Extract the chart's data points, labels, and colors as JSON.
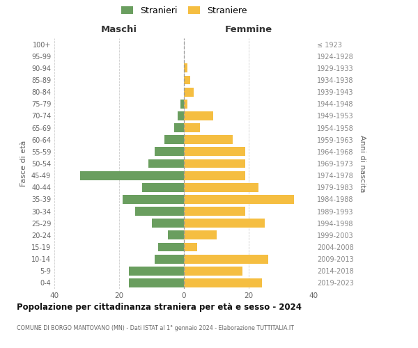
{
  "age_groups": [
    "0-4",
    "5-9",
    "10-14",
    "15-19",
    "20-24",
    "25-29",
    "30-34",
    "35-39",
    "40-44",
    "45-49",
    "50-54",
    "55-59",
    "60-64",
    "65-69",
    "70-74",
    "75-79",
    "80-84",
    "85-89",
    "90-94",
    "95-99",
    "100+"
  ],
  "birth_years": [
    "2019-2023",
    "2014-2018",
    "2009-2013",
    "2004-2008",
    "1999-2003",
    "1994-1998",
    "1989-1993",
    "1984-1988",
    "1979-1983",
    "1974-1978",
    "1969-1973",
    "1964-1968",
    "1959-1963",
    "1954-1958",
    "1949-1953",
    "1944-1948",
    "1939-1943",
    "1934-1938",
    "1929-1933",
    "1924-1928",
    "≤ 1923"
  ],
  "maschi": [
    17,
    17,
    9,
    8,
    5,
    10,
    15,
    19,
    13,
    32,
    11,
    9,
    6,
    3,
    2,
    1,
    0,
    0,
    0,
    0,
    0
  ],
  "femmine": [
    24,
    18,
    26,
    4,
    10,
    25,
    19,
    34,
    23,
    19,
    19,
    19,
    15,
    5,
    9,
    1,
    3,
    2,
    1,
    0,
    0
  ],
  "male_color": "#6a9e5f",
  "female_color": "#f5be41",
  "background_color": "#ffffff",
  "grid_color": "#cccccc",
  "title": "Popolazione per cittadinanza straniera per età e sesso - 2024",
  "subtitle": "COMUNE DI BORGO MANTOVANO (MN) - Dati ISTAT al 1° gennaio 2024 - Elaborazione TUTTITALIA.IT",
  "xlabel_left": "Maschi",
  "xlabel_right": "Femmine",
  "ylabel_left": "Fasce di età",
  "ylabel_right": "Anni di nascita",
  "legend_male": "Stranieri",
  "legend_female": "Straniere",
  "xlim": 40,
  "bar_height": 0.75
}
